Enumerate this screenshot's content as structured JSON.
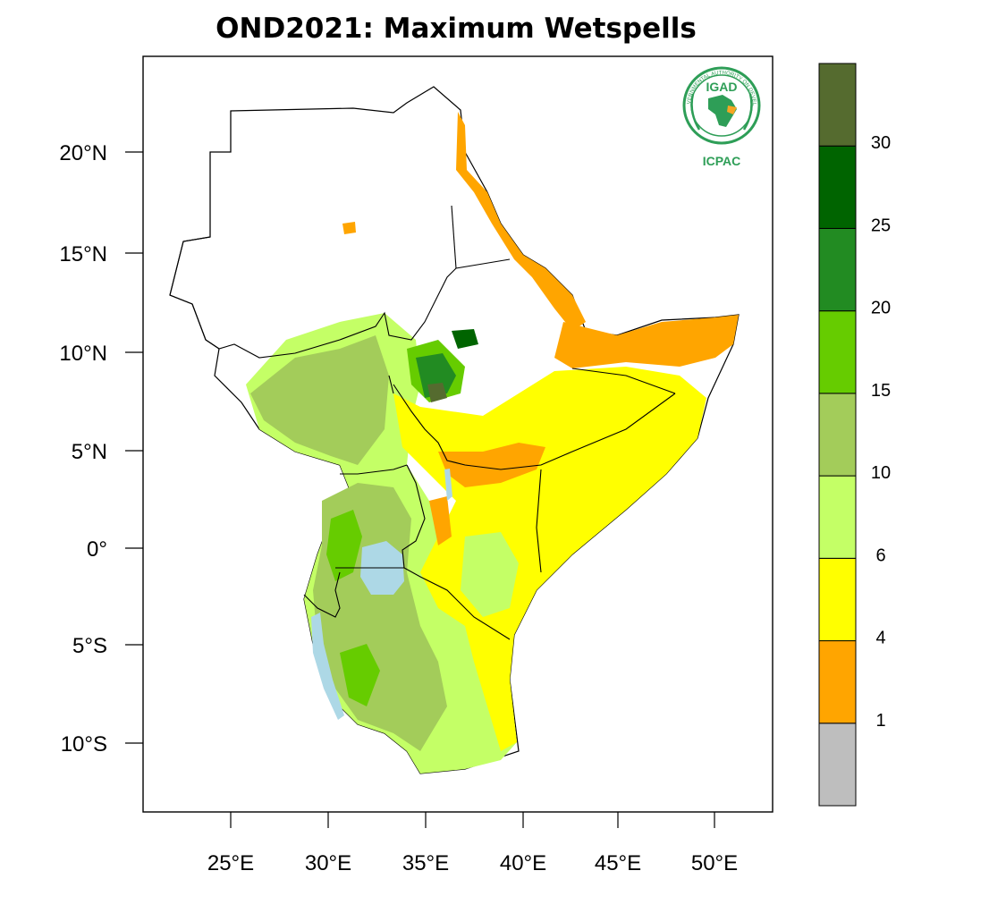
{
  "title": "OND2021: Maximum Wetspells",
  "map": {
    "lon_ticks": [
      "25°E",
      "30°E",
      "35°E",
      "40°E",
      "45°E",
      "50°E"
    ],
    "lat_ticks": [
      "20°N",
      "15°N",
      "10°N",
      "5°N",
      "0°",
      "5°S",
      "10°S"
    ],
    "lon_range": [
      20.5,
      53
    ],
    "lat_range": [
      -13.5,
      25
    ]
  },
  "legend": {
    "levels": [
      "1",
      "4",
      "6",
      "10",
      "15",
      "20",
      "25",
      "30"
    ],
    "colors": [
      "#bebebe",
      "#ffa500",
      "#ffff00",
      "#c4ff66",
      "#a3cc5a",
      "#66cc00",
      "#228b22",
      "#006400",
      "#556b2f"
    ],
    "categories": [
      "<1",
      "1–4",
      "4–6",
      "6–10",
      "10–15",
      "15–20",
      "20–25",
      "25–30",
      ">30"
    ]
  },
  "logo": {
    "acronym": "IGAD",
    "center": "ICPAC",
    "ring_text": "INTERGOVERNMENTAL AUTHORITY ON DEVELOPMENT"
  }
}
